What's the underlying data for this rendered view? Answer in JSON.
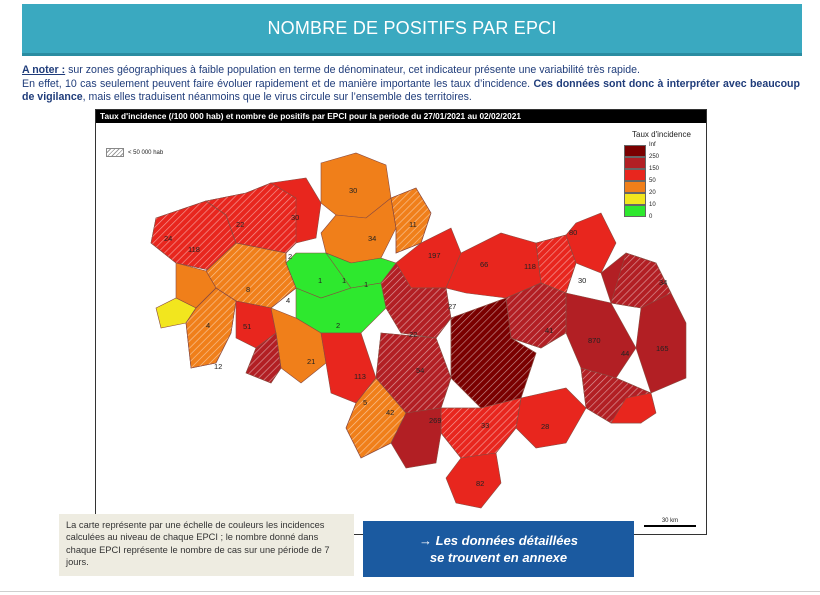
{
  "header": {
    "title": "NOMBRE DE POSITIFS PAR EPCI"
  },
  "note": {
    "lead": "A noter :",
    "text1": " sur zones géographiques à faible population en terme de dénominateur, cet indicateur présente une variabilité très rapide.",
    "text2": "En effet, 10 cas seulement peuvent faire évoluer rapidement et de manière importante les taux d’incidence. ",
    "bold": "Ces données sont donc à interpréter avec beaucoup de vigilance",
    "text3": ", mais elles traduisent néanmoins que le virus circule sur l’ensemble des territoires."
  },
  "map": {
    "title": "Taux d'incidence (/100 000 hab) et nombre de positifs par EPCI pour la periode du 27/01/2021 au 02/02/2021",
    "hatch_label": "< 50 000 hab",
    "scale_label": "30 km",
    "legend": {
      "title": "Taux d'incidence",
      "items": [
        {
          "label": "Inf",
          "color": "#7a0000"
        },
        {
          "label": "250",
          "color": "#b21f24"
        },
        {
          "label": "150",
          "color": "#e8261e"
        },
        {
          "label": "50",
          "color": "#f07f1a"
        },
        {
          "label": "20",
          "color": "#f2e61e"
        },
        {
          "label": "10",
          "color": "#2ee82e"
        },
        {
          "label": "0",
          "color": ""
        }
      ]
    },
    "counts": [
      "24",
      "118",
      "22",
      "30",
      "30",
      "34",
      "11",
      "2",
      "8",
      "4",
      "1",
      "1",
      "1",
      "2",
      "4",
      "51",
      "12",
      "21",
      "197",
      "66",
      "118",
      "80",
      "27",
      "22",
      "41",
      "30",
      "34",
      "870",
      "165",
      "44",
      "113",
      "54",
      "5",
      "42",
      "269",
      "33",
      "28",
      "82"
    ]
  },
  "caption": {
    "text": "La carte représente par une échelle de couleurs les incidences calculées au niveau de chaque EPCI ; le nombre donné dans chaque EPCI représente le nombre de cas sur une période de 7 jours."
  },
  "cta": {
    "line1": "→ Les données détaillées",
    "line2": "se trouvent en annexe"
  }
}
